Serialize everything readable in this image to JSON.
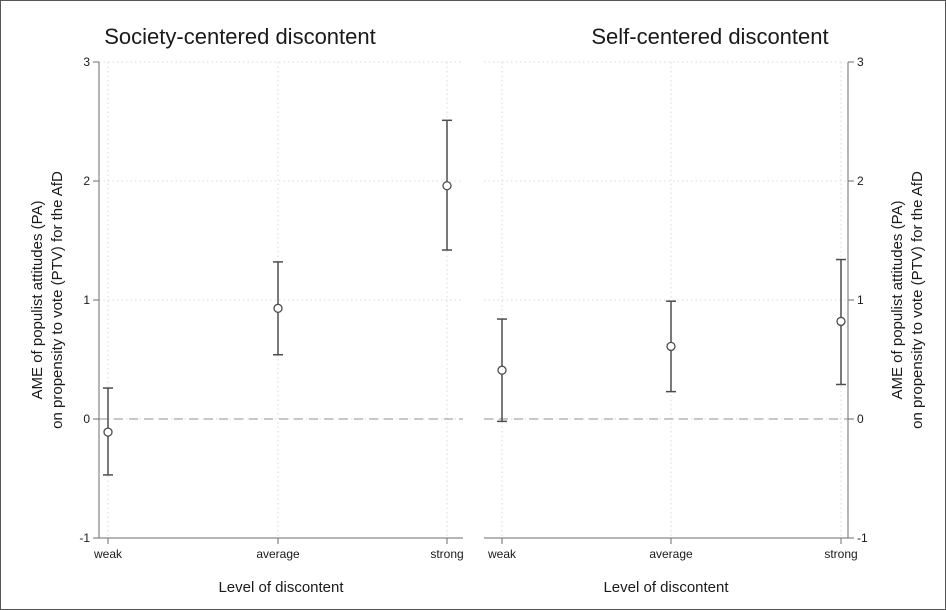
{
  "chart_data": [
    {
      "type": "scatter",
      "title": "Society-centered discontent",
      "xlabel": "Level of discontent",
      "ylabel": [
        "AME of populist attitudes (PA)",
        "on propensity to vote (PTV) for the AfD"
      ],
      "categories": [
        "weak",
        "average",
        "strong"
      ],
      "estimates": [
        -0.11,
        0.93,
        1.96
      ],
      "ci_low": [
        -0.47,
        0.54,
        1.42
      ],
      "ci_high": [
        0.26,
        1.32,
        2.51
      ],
      "ylim": [
        -1,
        3
      ],
      "yticks": [
        "-1",
        "0",
        "1",
        "2",
        "3"
      ],
      "yaxis_side": "left",
      "reference_line": 0,
      "grid": true
    },
    {
      "type": "scatter",
      "title": "Self-centered discontent",
      "xlabel": "Level of discontent",
      "ylabel": [
        "AME of populist attitudes (PA)",
        "on propensity to vote (PTV) for the AfD"
      ],
      "categories": [
        "weak",
        "average",
        "strong"
      ],
      "estimates": [
        0.41,
        0.61,
        0.82
      ],
      "ci_low": [
        -0.02,
        0.23,
        0.29
      ],
      "ci_high": [
        0.84,
        0.99,
        1.34
      ],
      "ylim": [
        -1,
        3
      ],
      "yticks": [
        "-1",
        "0",
        "1",
        "2",
        "3"
      ],
      "yaxis_side": "right",
      "reference_line": 0,
      "grid": true
    }
  ]
}
